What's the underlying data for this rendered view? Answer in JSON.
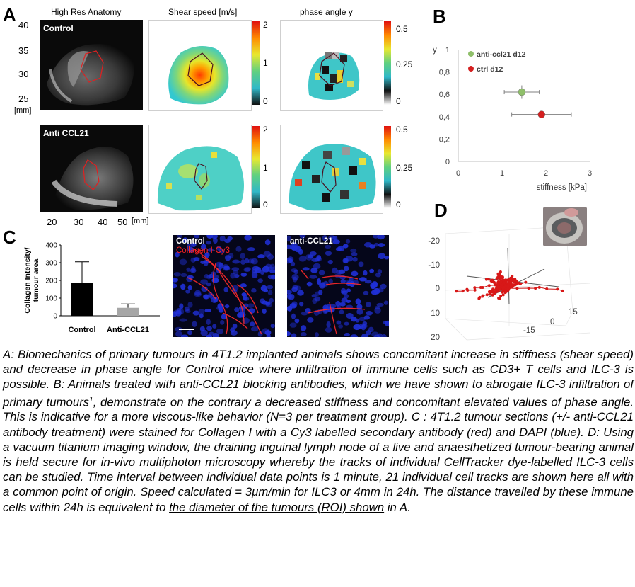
{
  "panelA": {
    "letter": "A",
    "col_titles": [
      "High Res Anatomy",
      "Shear speed [m/s]",
      "phase angle y"
    ],
    "row_labels": [
      "Control",
      "Anti CCL21"
    ],
    "y_ticks": [
      "40",
      "35",
      "30",
      "25"
    ],
    "y_unit": "[mm]",
    "x_ticks": [
      "20",
      "30",
      "40",
      "50"
    ],
    "x_unit": "[mm]",
    "shear_ticks": [
      "2",
      "1",
      "0"
    ],
    "phase_ticks": [
      "0.5",
      "0.25",
      "0"
    ]
  },
  "panelB": {
    "letter": "B",
    "chart_data": {
      "type": "scatter",
      "xlabel": "stiffness [kPa]",
      "ylabel": "y",
      "xlim": [
        0,
        3
      ],
      "ylim": [
        0,
        1
      ],
      "x_ticks": [
        "0",
        "1",
        "2",
        "3"
      ],
      "y_ticks": [
        "0",
        "0,2",
        "0,4",
        "0,6",
        "0,8",
        "1"
      ],
      "legend_position": "top-left",
      "series": [
        {
          "name": "anti-ccl21 d12",
          "color": "#8fbf6a",
          "x": 1.45,
          "y": 0.62,
          "xerr": 0.4,
          "yerr": 0.06
        },
        {
          "name": "ctrl d12",
          "color": "#d42020",
          "x": 1.9,
          "y": 0.42,
          "xerr": 0.68,
          "yerr": 0.015
        }
      ]
    }
  },
  "panelC": {
    "letter": "C",
    "chart_data": {
      "type": "bar",
      "categories": [
        "Control",
        "Anti-CCL21"
      ],
      "values": [
        185,
        45
      ],
      "errors": [
        120,
        22
      ],
      "colors": [
        "#000000",
        "#a6a6a6"
      ],
      "ylabel": "Collagen Intensity/ tumour area",
      "ylim": [
        0,
        400
      ],
      "y_ticks": [
        "0",
        "100",
        "200",
        "300",
        "400"
      ]
    },
    "micro_labels": [
      "Control",
      "Collagen I-Cy3",
      "anti-CCL21"
    ]
  },
  "panelD": {
    "letter": "D",
    "axis_ticks_left": [
      "-20",
      "-10",
      "0",
      "10",
      "20"
    ],
    "axis_ticks_right": [
      "15",
      "0",
      "-15"
    ]
  },
  "caption": {
    "p1": "A: Biomechanics of primary tumours in 4T1.2 implanted animals shows concomitant increase in stiffness (shear speed) and decrease in phase angle for Control mice where infiltration of immune cells such as CD3+ T cells and ILC-3 is possible. B: Animals treated with anti-CCL21 blocking antibodies, which we have shown to abrogate ILC-3 infiltration of primary tumours",
    "sup": "1",
    "p2": ", demonstrate on the contrary a decreased stiffness and concomitant elevated values of phase angle. This is indicative for a more viscous-like behavior (N=3 per treatment group). C : 4T1.2 tumour sections (+/- anti-CCL21 antibody treatment) were stained for Collagen I with a Cy3 labelled secondary antibody (red) and DAPI (blue). D: Using a vacuum titanium imaging window, the draining inguinal lymph node of a live and anaesthetized tumour-bearing animal is held secure for in-vivo multiphoton microscopy whereby the tracks of individual CellTracker dye-labelled ILC-3 cells can be studied. Time interval between individual data points is 1 minute, 21 individual cell tracks are shown here all with a common point of origin. Speed calculated = 3μm/min for ILC3 or 4mm in 24h. The distance travelled by these immune cells within 24h is equivalent to ",
    "underlined": "the diameter of the tumours (ROI) shown",
    "p3": " in A."
  }
}
